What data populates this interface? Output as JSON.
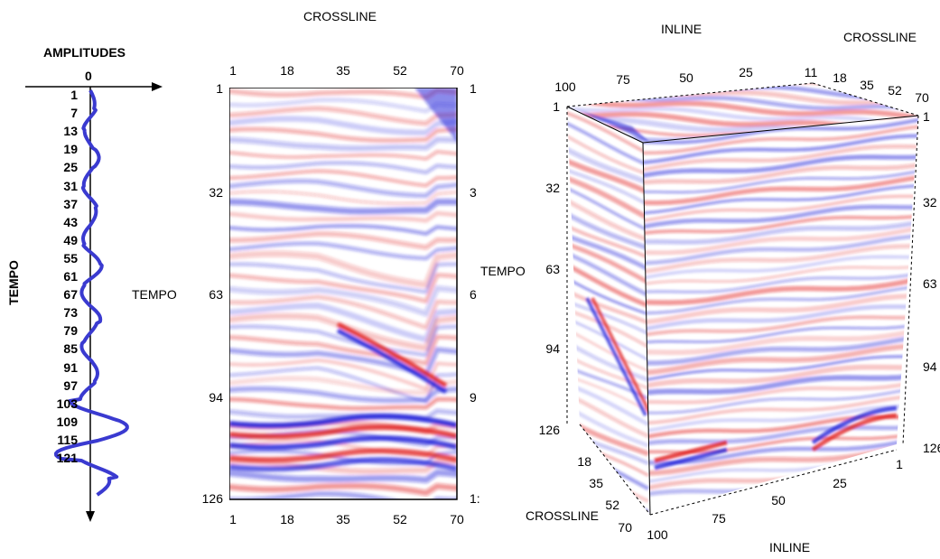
{
  "trace_panel": {
    "title": "AMPLITUDES",
    "zero_label": "0",
    "axis_label": "TEMPO",
    "tempo_ticks": [
      "1",
      "7",
      "13",
      "19",
      "25",
      "31",
      "37",
      "43",
      "49",
      "55",
      "61",
      "67",
      "73",
      "79",
      "85",
      "91",
      "97",
      "103",
      "109",
      "115",
      "121"
    ]
  },
  "section_panel": {
    "title": "CROSSLINE",
    "left_axis_label": "TEMPO",
    "right_axis_label": "TEMPO",
    "top_ticks": [
      "1",
      "18",
      "35",
      "52",
      "70"
    ],
    "bottom_ticks": [
      "1",
      "18",
      "35",
      "52",
      "70"
    ],
    "left_ticks": [
      "1",
      "32",
      "63",
      "94",
      "126"
    ],
    "right_ticks": [
      "1",
      "3",
      "6",
      "9",
      "1:"
    ]
  },
  "cube_panel": {
    "inline_label": "INLINE",
    "crossline_label_top": "CROSSLINE",
    "crossline_label_bottom": "CROSSLINE",
    "inline_label_bottom": "INLINE",
    "top_inline_ticks": [
      "100",
      "75",
      "50",
      "25",
      "11"
    ],
    "top_crossline_ticks": [
      "18",
      "35",
      "52",
      "70"
    ],
    "left_tempo_ticks": [
      "1",
      "32",
      "63",
      "94",
      "126"
    ],
    "right_tempo_ticks": [
      "1",
      "32",
      "63",
      "94",
      "126"
    ],
    "bottom_crossline_ticks": [
      "18",
      "35",
      "52",
      "70"
    ],
    "bottom_inline_ticks": [
      "100",
      "75",
      "50",
      "25",
      "1"
    ]
  },
  "colors": {
    "trace": "#3a3ad0",
    "positive": "#e01818",
    "negative": "#1a1ad8",
    "axis": "#000000"
  }
}
